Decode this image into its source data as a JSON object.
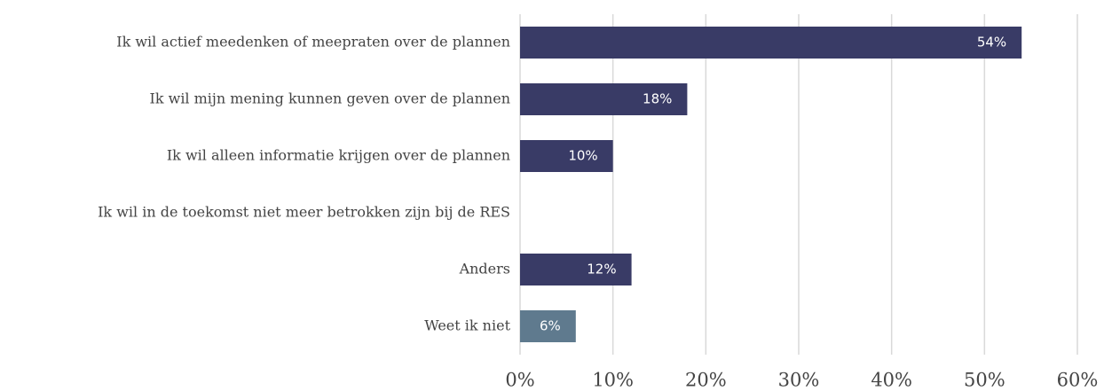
{
  "chart_data": {
    "type": "barh",
    "categories": [
      "Ik wil actief meedenken of meepraten over de plannen",
      "Ik wil mijn mening kunnen geven over de plannen",
      "Ik wil alleen informatie krijgen over de plannen",
      "Ik wil in de toekomst niet meer betrokken zijn bij de RES",
      "Anders",
      "Weet ik niet"
    ],
    "values": [
      54,
      18,
      10,
      null,
      12,
      6
    ],
    "value_labels": [
      "54%",
      "18%",
      "10%",
      null,
      "12%",
      "6%"
    ],
    "colors": [
      "#393b66",
      "#393b66",
      "#393b66",
      "#393b66",
      "#393b66",
      "#5f7a8e"
    ],
    "xlim": [
      0,
      60
    ],
    "xticks": [
      {
        "value": 0,
        "label": "0%"
      },
      {
        "value": 10,
        "label": "10%"
      },
      {
        "value": 20,
        "label": "20%"
      },
      {
        "value": 30,
        "label": "30%"
      },
      {
        "value": 40,
        "label": "40%"
      },
      {
        "value": 50,
        "label": "50%"
      },
      {
        "value": 60,
        "label": "60%"
      }
    ],
    "grid": true
  }
}
